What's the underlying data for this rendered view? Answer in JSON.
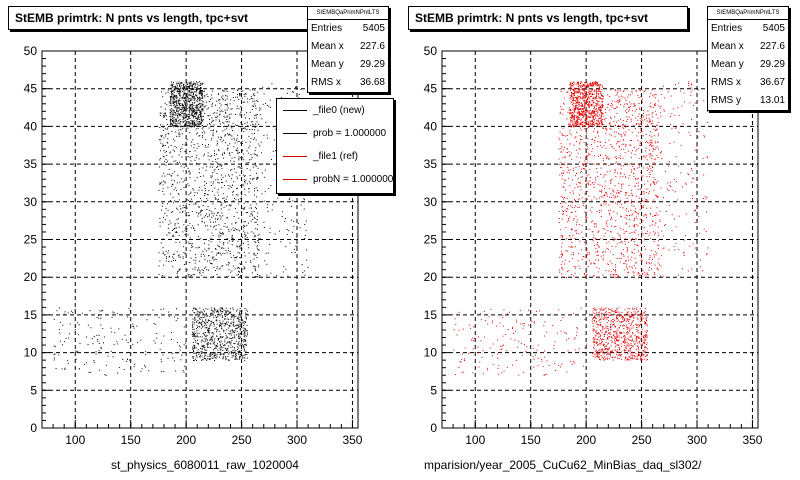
{
  "chart_data": [
    {
      "type": "scatter",
      "title": "StEMB primtrk: N pnts vs length, tpc+svt",
      "xlabel": "st_physics_6080011_raw_1020004",
      "ylabel": "",
      "xlim": [
        70,
        355
      ],
      "ylim": [
        0,
        50
      ],
      "xticks": [
        100,
        150,
        200,
        250,
        300,
        350
      ],
      "yticks": [
        0,
        5,
        10,
        15,
        20,
        25,
        30,
        35,
        40,
        45,
        50
      ],
      "grid": true,
      "color": "#000000",
      "stats": {
        "name": "StEMBQaPrimNPntLTS",
        "rows": [
          {
            "label": "Entries",
            "value": "5405"
          },
          {
            "label": "Mean x",
            "value": "227.6"
          },
          {
            "label": "Mean y",
            "value": "29.29"
          },
          {
            "label": "RMS x",
            "value": "36.68"
          }
        ]
      },
      "legend": {
        "position": "top-right",
        "entries": [
          {
            "label": "_file0 (new)",
            "color": "#000000"
          },
          {
            "label": "prob = 1.000000",
            "color": "#000000"
          },
          {
            "label": "_file1 (ref)",
            "color": "#cc0000"
          },
          {
            "label": "probN = 1.000000",
            "color": "#cc0000"
          }
        ]
      },
      "density_regions": [
        {
          "x": [
            185,
            215
          ],
          "y": [
            40,
            46
          ],
          "density": "high"
        },
        {
          "x": [
            175,
            225
          ],
          "y": [
            20,
            45
          ],
          "density": "medium"
        },
        {
          "x": [
            225,
            265
          ],
          "y": [
            20,
            45
          ],
          "density": "medium"
        },
        {
          "x": [
            205,
            255
          ],
          "y": [
            9,
            16
          ],
          "density": "high"
        },
        {
          "x": [
            80,
            200
          ],
          "y": [
            7,
            16
          ],
          "density": "low"
        },
        {
          "x": [
            260,
            310
          ],
          "y": [
            20,
            46
          ],
          "density": "low"
        }
      ]
    },
    {
      "type": "scatter",
      "title": "StEMB primtrk: N pnts vs length, tpc+svt",
      "xlabel": "mparision/year_2005_CuCu62_MinBias_daq_sl302/",
      "ylabel": "",
      "xlim": [
        70,
        355
      ],
      "ylim": [
        0,
        50
      ],
      "xticks": [
        100,
        150,
        200,
        250,
        300,
        350
      ],
      "yticks": [
        0,
        5,
        10,
        15,
        20,
        25,
        30,
        35,
        40,
        45,
        50
      ],
      "grid": true,
      "color": "#e00000",
      "stats": {
        "name": "StEMBQaPrimNPntLTS",
        "rows": [
          {
            "label": "Entries",
            "value": "5405"
          },
          {
            "label": "Mean x",
            "value": "227.6"
          },
          {
            "label": "Mean y",
            "value": "29.29"
          },
          {
            "label": "RMS x",
            "value": "36.67"
          },
          {
            "label": "RMS y",
            "value": "13.01"
          }
        ]
      },
      "density_regions": [
        {
          "x": [
            185,
            215
          ],
          "y": [
            40,
            46
          ],
          "density": "high"
        },
        {
          "x": [
            175,
            225
          ],
          "y": [
            20,
            45
          ],
          "density": "medium"
        },
        {
          "x": [
            225,
            265
          ],
          "y": [
            20,
            45
          ],
          "density": "medium"
        },
        {
          "x": [
            205,
            255
          ],
          "y": [
            9,
            16
          ],
          "density": "high"
        },
        {
          "x": [
            80,
            200
          ],
          "y": [
            7,
            16
          ],
          "density": "low"
        },
        {
          "x": [
            260,
            310
          ],
          "y": [
            20,
            46
          ],
          "density": "low"
        }
      ]
    }
  ]
}
